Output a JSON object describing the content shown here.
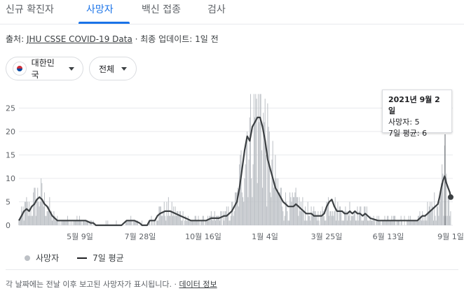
{
  "tabs": [
    {
      "label": "신규 확진자",
      "active": false
    },
    {
      "label": "사망자",
      "active": true
    },
    {
      "label": "백신 접종",
      "active": false
    },
    {
      "label": "검사",
      "active": false
    }
  ],
  "source": {
    "prefix": "출처: ",
    "link": "JHU CSSE COVID-19 Data",
    "separator": " · ",
    "updated": "최종 업데이트: 1일 전"
  },
  "filters": {
    "region": "대한민국",
    "region_icon": "korea-flag-icon",
    "scope": "전체"
  },
  "tooltip": {
    "date": "2021년 9월 2일",
    "deaths_label": "사망자: ",
    "deaths_value": 5,
    "avg_label": "7일 평균: ",
    "avg_value": 6
  },
  "legend": {
    "bars_label": "사망자",
    "line_label": "7일 평균"
  },
  "footnote": {
    "text": "각 날짜에는 전날 이후 보고된 사망자가 표시됩니다.",
    "separator": " · ",
    "link": "데이터 정보"
  },
  "colors": {
    "accent": "#1a73e8",
    "bars": "#bdc1c6",
    "line": "#3c4043"
  },
  "chart_data": {
    "type": "bar",
    "series": [
      {
        "name": "사망자",
        "kind": "bar"
      },
      {
        "name": "7일 평균",
        "kind": "line"
      }
    ],
    "ylim": [
      0,
      28
    ],
    "yticks": [
      0,
      5,
      10,
      15,
      20,
      25
    ],
    "xticks": [
      "5월 9일",
      "7월 28일",
      "10월 16일",
      "1월 4일",
      "3월 25일",
      "6월 13일",
      "9월 1일"
    ],
    "avg_points": [
      [
        0,
        1
      ],
      [
        3,
        2
      ],
      [
        6,
        3
      ],
      [
        9,
        3.5
      ],
      [
        12,
        3
      ],
      [
        15,
        4
      ],
      [
        18,
        4.5
      ],
      [
        21,
        5.5
      ],
      [
        24,
        6
      ],
      [
        27,
        5.5
      ],
      [
        30,
        4.5
      ],
      [
        33,
        4
      ],
      [
        36,
        3
      ],
      [
        39,
        2
      ],
      [
        42,
        1.5
      ],
      [
        45,
        1
      ],
      [
        48,
        1
      ],
      [
        54,
        1
      ],
      [
        60,
        1
      ],
      [
        66,
        1
      ],
      [
        72,
        1
      ],
      [
        78,
        1
      ],
      [
        84,
        0.5
      ],
      [
        87,
        0.5
      ],
      [
        90,
        0
      ],
      [
        120,
        0
      ],
      [
        123,
        0.5
      ],
      [
        126,
        1
      ],
      [
        135,
        1
      ],
      [
        141,
        0.5
      ],
      [
        144,
        0
      ],
      [
        150,
        0
      ],
      [
        153,
        1
      ],
      [
        159,
        1
      ],
      [
        162,
        2
      ],
      [
        165,
        2.5
      ],
      [
        171,
        3
      ],
      [
        177,
        3
      ],
      [
        183,
        2.5
      ],
      [
        189,
        2
      ],
      [
        195,
        1.5
      ],
      [
        201,
        1
      ],
      [
        210,
        1
      ],
      [
        219,
        1
      ],
      [
        225,
        1.5
      ],
      [
        234,
        1.5
      ],
      [
        240,
        2
      ],
      [
        243,
        2
      ],
      [
        249,
        3
      ],
      [
        255,
        5
      ],
      [
        258,
        8
      ],
      [
        261,
        12
      ],
      [
        264,
        16
      ],
      [
        267,
        19
      ],
      [
        270,
        18
      ],
      [
        273,
        21
      ],
      [
        276,
        22
      ],
      [
        279,
        23
      ],
      [
        282,
        23
      ],
      [
        285,
        21
      ],
      [
        288,
        18
      ],
      [
        291,
        14
      ],
      [
        294,
        12
      ],
      [
        297,
        10
      ],
      [
        300,
        8
      ],
      [
        303,
        7
      ],
      [
        306,
        6
      ],
      [
        309,
        5
      ],
      [
        312,
        4.5
      ],
      [
        315,
        4
      ],
      [
        318,
        4
      ],
      [
        321,
        4
      ],
      [
        324,
        4.5
      ],
      [
        327,
        4
      ],
      [
        330,
        3.5
      ],
      [
        333,
        3
      ],
      [
        336,
        2.5
      ],
      [
        339,
        2.5
      ],
      [
        342,
        2.5
      ],
      [
        345,
        2
      ],
      [
        348,
        2
      ],
      [
        351,
        2
      ],
      [
        354,
        2
      ],
      [
        357,
        2.5
      ],
      [
        360,
        4
      ],
      [
        363,
        5
      ],
      [
        366,
        5.5
      ],
      [
        369,
        4
      ],
      [
        372,
        3
      ],
      [
        375,
        3
      ],
      [
        378,
        3
      ],
      [
        381,
        2.5
      ],
      [
        384,
        2.5
      ],
      [
        387,
        3
      ],
      [
        390,
        2.5
      ],
      [
        393,
        3
      ],
      [
        396,
        2.5
      ],
      [
        399,
        2.5
      ],
      [
        402,
        2
      ],
      [
        405,
        2.5
      ],
      [
        408,
        2
      ],
      [
        411,
        1.5
      ],
      [
        420,
        1
      ],
      [
        430,
        1
      ],
      [
        440,
        1
      ],
      [
        450,
        1
      ],
      [
        460,
        1
      ],
      [
        466,
        1
      ],
      [
        469,
        1.5
      ],
      [
        472,
        2
      ],
      [
        475,
        2
      ],
      [
        478,
        2.5
      ],
      [
        481,
        3
      ],
      [
        484,
        3.5
      ],
      [
        487,
        4
      ],
      [
        490,
        4.5
      ],
      [
        492,
        6
      ],
      [
        494,
        8
      ],
      [
        496,
        9.5
      ],
      [
        498,
        10.5
      ],
      [
        500,
        9
      ],
      [
        502,
        8
      ],
      [
        504,
        7
      ],
      [
        505,
        6
      ]
    ]
  }
}
